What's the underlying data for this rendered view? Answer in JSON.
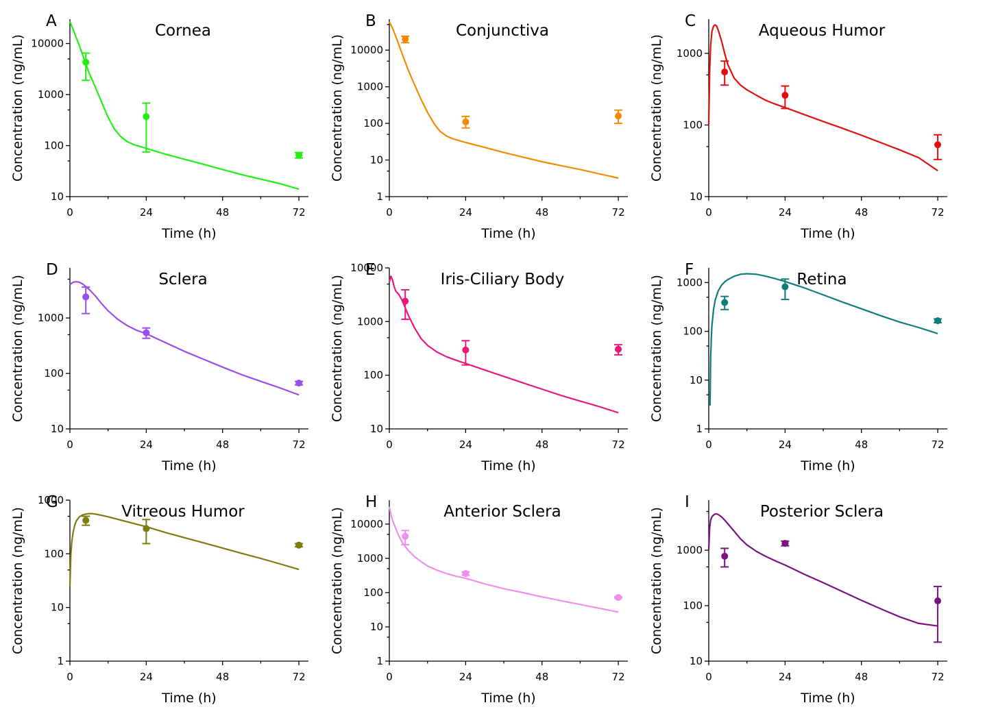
{
  "chart_data": [
    {
      "letter": "A",
      "title": "Cornea",
      "type": "line",
      "xlabel": "Time (h)",
      "ylabel": "Concentration (ng/mL)",
      "color": "#22ee11",
      "xlim": [
        0,
        75
      ],
      "xticks": [
        0,
        24,
        48,
        72
      ],
      "ylim": [
        10,
        30000
      ],
      "yticks": [
        10,
        100,
        1000,
        10000
      ],
      "yticklabels": [
        "10",
        "100",
        "1000",
        "10000"
      ],
      "curve": {
        "x": [
          0,
          1,
          2,
          3,
          4,
          5,
          6,
          8,
          10,
          12,
          14,
          16,
          18,
          20,
          24,
          30,
          36,
          42,
          48,
          54,
          60,
          66,
          72
        ],
        "y": [
          27000,
          19000,
          13000,
          9000,
          6000,
          4000,
          2700,
          1400,
          700,
          360,
          210,
          150,
          120,
          105,
          88,
          68,
          54,
          43,
          34,
          27,
          22,
          18,
          14
        ]
      },
      "points": [
        {
          "x": 5,
          "y": 4300,
          "lo": 1900,
          "hi": 6500
        },
        {
          "x": 24,
          "y": 370,
          "lo": 75,
          "hi": 680
        },
        {
          "x": 72,
          "y": 65,
          "lo": 57,
          "hi": 73
        }
      ]
    },
    {
      "letter": "B",
      "title": "Conjunctiva",
      "type": "line",
      "xlabel": "Time (h)",
      "ylabel": "Concentration (ng/mL)",
      "color": "#f58a00",
      "xlim": [
        0,
        75
      ],
      "xticks": [
        0,
        24,
        48,
        72
      ],
      "ylim": [
        1,
        70000
      ],
      "yticks": [
        1,
        10,
        100,
        1000,
        10000
      ],
      "yticklabels": [
        "1",
        "10",
        "100",
        "1000",
        "10000"
      ],
      "curve": {
        "x": [
          0,
          1,
          2,
          3,
          4,
          6,
          8,
          10,
          12,
          14,
          16,
          18,
          20,
          24,
          30,
          36,
          42,
          48,
          54,
          60,
          66,
          72
        ],
        "y": [
          60000,
          40000,
          24000,
          14000,
          8000,
          2800,
          1100,
          450,
          200,
          100,
          60,
          45,
          38,
          30,
          22,
          16,
          12,
          9,
          7,
          5.5,
          4.2,
          3.2
        ]
      },
      "points": [
        {
          "x": 5,
          "y": 20000,
          "lo": 16000,
          "hi": 24000
        },
        {
          "x": 24,
          "y": 110,
          "lo": 75,
          "hi": 155
        },
        {
          "x": 72,
          "y": 160,
          "lo": 100,
          "hi": 230
        }
      ]
    },
    {
      "letter": "C",
      "title": "Aqueous Humor",
      "type": "line",
      "xlabel": "Time (h)",
      "ylabel": "Concentration (ng/mL)",
      "color": "#e01010",
      "xlim": [
        0,
        75
      ],
      "xticks": [
        0,
        24,
        48,
        72
      ],
      "ylim": [
        10,
        3000
      ],
      "yticks": [
        10,
        100,
        1000
      ],
      "yticklabels": [
        "10",
        "100",
        "1000"
      ],
      "curve": {
        "x": [
          0,
          0.3,
          0.6,
          1,
          1.5,
          2,
          2.5,
          3,
          4,
          5,
          6,
          8,
          10,
          12,
          15,
          18,
          21,
          24,
          30,
          36,
          42,
          48,
          54,
          60,
          66,
          72
        ],
        "y": [
          100,
          600,
          1300,
          2000,
          2400,
          2500,
          2400,
          2100,
          1500,
          1000,
          700,
          450,
          360,
          310,
          260,
          220,
          195,
          175,
          140,
          112,
          90,
          72,
          57,
          45,
          35,
          23
        ]
      },
      "points": [
        {
          "x": 5,
          "y": 550,
          "lo": 360,
          "hi": 780
        },
        {
          "x": 24,
          "y": 260,
          "lo": 170,
          "hi": 350
        },
        {
          "x": 72,
          "y": 53,
          "lo": 33,
          "hi": 73
        }
      ]
    },
    {
      "letter": "D",
      "title": "Sclera",
      "type": "line",
      "xlabel": "Time (h)",
      "ylabel": "Concentration (ng/mL)",
      "color": "#9b4df0",
      "xlim": [
        0,
        75
      ],
      "xticks": [
        0,
        24,
        48,
        72
      ],
      "ylim": [
        10,
        8000
      ],
      "yticks": [
        10,
        100,
        1000
      ],
      "yticklabels": [
        "10",
        "100",
        "1000"
      ],
      "curve": {
        "x": [
          0,
          1,
          2,
          3,
          4,
          6,
          8,
          10,
          12,
          15,
          18,
          21,
          24,
          30,
          36,
          42,
          48,
          54,
          60,
          66,
          72
        ],
        "y": [
          4000,
          4400,
          4500,
          4400,
          4100,
          3300,
          2500,
          1800,
          1350,
          950,
          730,
          600,
          520,
          360,
          250,
          180,
          130,
          95,
          72,
          55,
          41
        ]
      },
      "points": [
        {
          "x": 5,
          "y": 2400,
          "lo": 1200,
          "hi": 3600
        },
        {
          "x": 24,
          "y": 540,
          "lo": 430,
          "hi": 660
        },
        {
          "x": 72,
          "y": 67,
          "lo": 62,
          "hi": 72
        }
      ]
    },
    {
      "letter": "E",
      "title": "Iris-Ciliary Body",
      "type": "line",
      "xlabel": "Time (h)",
      "ylabel": "Concentration (ng/mL)",
      "color": "#e8197a",
      "xlim": [
        0,
        75
      ],
      "xticks": [
        0,
        24,
        48,
        72
      ],
      "ylim": [
        10,
        10000
      ],
      "yticks": [
        10,
        100,
        1000,
        10000
      ],
      "yticklabels": [
        "10",
        "100",
        "1000",
        "10000"
      ],
      "curve": {
        "x": [
          0,
          0.5,
          1,
          1.5,
          2,
          3,
          4,
          5,
          6,
          8,
          10,
          12,
          15,
          18,
          21,
          24,
          30,
          36,
          42,
          48,
          54,
          60,
          66,
          72
        ],
        "y": [
          5500,
          7000,
          6000,
          4500,
          3700,
          3200,
          2500,
          1800,
          1300,
          750,
          480,
          360,
          270,
          220,
          190,
          165,
          125,
          95,
          72,
          55,
          42,
          33,
          26,
          20
        ]
      },
      "points": [
        {
          "x": 5,
          "y": 2400,
          "lo": 1100,
          "hi": 3900
        },
        {
          "x": 24,
          "y": 295,
          "lo": 155,
          "hi": 440
        },
        {
          "x": 72,
          "y": 305,
          "lo": 240,
          "hi": 370
        }
      ]
    },
    {
      "letter": "F",
      "title": "Retina",
      "type": "line",
      "xlabel": "Time (h)",
      "ylabel": "Concentration (ng/mL)",
      "color": "#0e7d77",
      "xlim": [
        0,
        75
      ],
      "xticks": [
        0,
        24,
        48,
        72
      ],
      "ylim": [
        1,
        2000
      ],
      "yticks": [
        1,
        10,
        100,
        1000
      ],
      "yticklabels": [
        "1",
        "10",
        "100",
        "1000"
      ],
      "curve": {
        "x": [
          0.4,
          0.6,
          0.8,
          1,
          1.5,
          2,
          3,
          4,
          5,
          6,
          8,
          10,
          12,
          15,
          18,
          21,
          24,
          30,
          36,
          42,
          48,
          54,
          60,
          66,
          72
        ],
        "y": [
          3,
          30,
          70,
          130,
          280,
          430,
          680,
          880,
          1030,
          1150,
          1350,
          1480,
          1520,
          1480,
          1350,
          1200,
          1050,
          780,
          560,
          400,
          290,
          210,
          155,
          120,
          90
        ]
      },
      "points": [
        {
          "x": 5,
          "y": 390,
          "lo": 280,
          "hi": 520
        },
        {
          "x": 24,
          "y": 820,
          "lo": 450,
          "hi": 1180
        },
        {
          "x": 72,
          "y": 165,
          "lo": 150,
          "hi": 180
        }
      ]
    },
    {
      "letter": "G",
      "title": "Vitreous Humor",
      "type": "line",
      "xlabel": "Time (h)",
      "ylabel": "Concentration (ng/mL)",
      "color": "#7d7a0f",
      "xlim": [
        0,
        75
      ],
      "xticks": [
        0,
        24,
        48,
        72
      ],
      "ylim": [
        1,
        1000
      ],
      "yticks": [
        1,
        10,
        100,
        1000
      ],
      "yticklabels": [
        "1",
        "10",
        "100",
        "1000"
      ],
      "curve": {
        "x": [
          0,
          0.3,
          0.6,
          1,
          1.5,
          2,
          3,
          4,
          5,
          6,
          7,
          8,
          10,
          12,
          15,
          18,
          21,
          24,
          30,
          36,
          42,
          48,
          54,
          60,
          66,
          72
        ],
        "y": [
          25,
          100,
          170,
          250,
          340,
          410,
          490,
          530,
          550,
          560,
          560,
          550,
          520,
          490,
          440,
          395,
          355,
          320,
          250,
          200,
          160,
          128,
          102,
          82,
          65,
          51
        ]
      },
      "points": [
        {
          "x": 5,
          "y": 420,
          "lo": 340,
          "hi": 500
        },
        {
          "x": 24,
          "y": 295,
          "lo": 155,
          "hi": 435
        },
        {
          "x": 72,
          "y": 145,
          "lo": 135,
          "hi": 155
        }
      ]
    },
    {
      "letter": "H",
      "title": "Anterior Sclera",
      "type": "line",
      "xlabel": "Time (h)",
      "ylabel": "Concentration (ng/mL)",
      "color": "#f08ef0",
      "xlim": [
        0,
        75
      ],
      "xticks": [
        0,
        24,
        48,
        72
      ],
      "ylim": [
        1,
        50000
      ],
      "yticks": [
        1,
        10,
        100,
        1000,
        10000
      ],
      "yticklabels": [
        "1",
        "10",
        "100",
        "1000",
        "10000"
      ],
      "curve": {
        "x": [
          0,
          0.5,
          1,
          2,
          3,
          4,
          5,
          6,
          8,
          10,
          12,
          15,
          18,
          21,
          24,
          30,
          36,
          42,
          48,
          54,
          60,
          66,
          72
        ],
        "y": [
          32000,
          19000,
          13000,
          7500,
          4500,
          3000,
          2200,
          1700,
          1100,
          800,
          600,
          450,
          360,
          300,
          260,
          180,
          130,
          100,
          75,
          58,
          45,
          35,
          27
        ]
      },
      "points": [
        {
          "x": 5,
          "y": 4400,
          "lo": 2500,
          "hi": 6500
        },
        {
          "x": 24,
          "y": 360,
          "lo": 320,
          "hi": 400
        },
        {
          "x": 72,
          "y": 72,
          "lo": 68,
          "hi": 76
        }
      ]
    },
    {
      "letter": "I",
      "title": "Posterior Sclera",
      "type": "line",
      "xlabel": "Time (h)",
      "ylabel": "Concentration (ng/mL)",
      "color": "#7a1280",
      "xlim": [
        0,
        75
      ],
      "xticks": [
        0,
        24,
        48,
        72
      ],
      "ylim": [
        10,
        8000
      ],
      "yticks": [
        10,
        100,
        1000
      ],
      "yticklabels": [
        "10",
        "100",
        "1000"
      ],
      "curve": {
        "x": [
          0,
          0.3,
          0.6,
          1,
          1.5,
          2,
          2.5,
          3,
          4,
          5,
          6,
          8,
          10,
          12,
          15,
          18,
          21,
          24,
          30,
          36,
          42,
          48,
          54,
          60,
          66,
          72
        ],
        "y": [
          1000,
          2600,
          3500,
          4000,
          4300,
          4500,
          4500,
          4400,
          4000,
          3500,
          3000,
          2200,
          1600,
          1250,
          950,
          770,
          640,
          540,
          370,
          260,
          180,
          125,
          88,
          63,
          48,
          43
        ]
      },
      "points": [
        {
          "x": 5,
          "y": 780,
          "lo": 500,
          "hi": 1080
        },
        {
          "x": 24,
          "y": 1330,
          "lo": 1200,
          "hi": 1460
        },
        {
          "x": 72,
          "y": 122,
          "lo": 22,
          "hi": 222
        }
      ]
    }
  ]
}
